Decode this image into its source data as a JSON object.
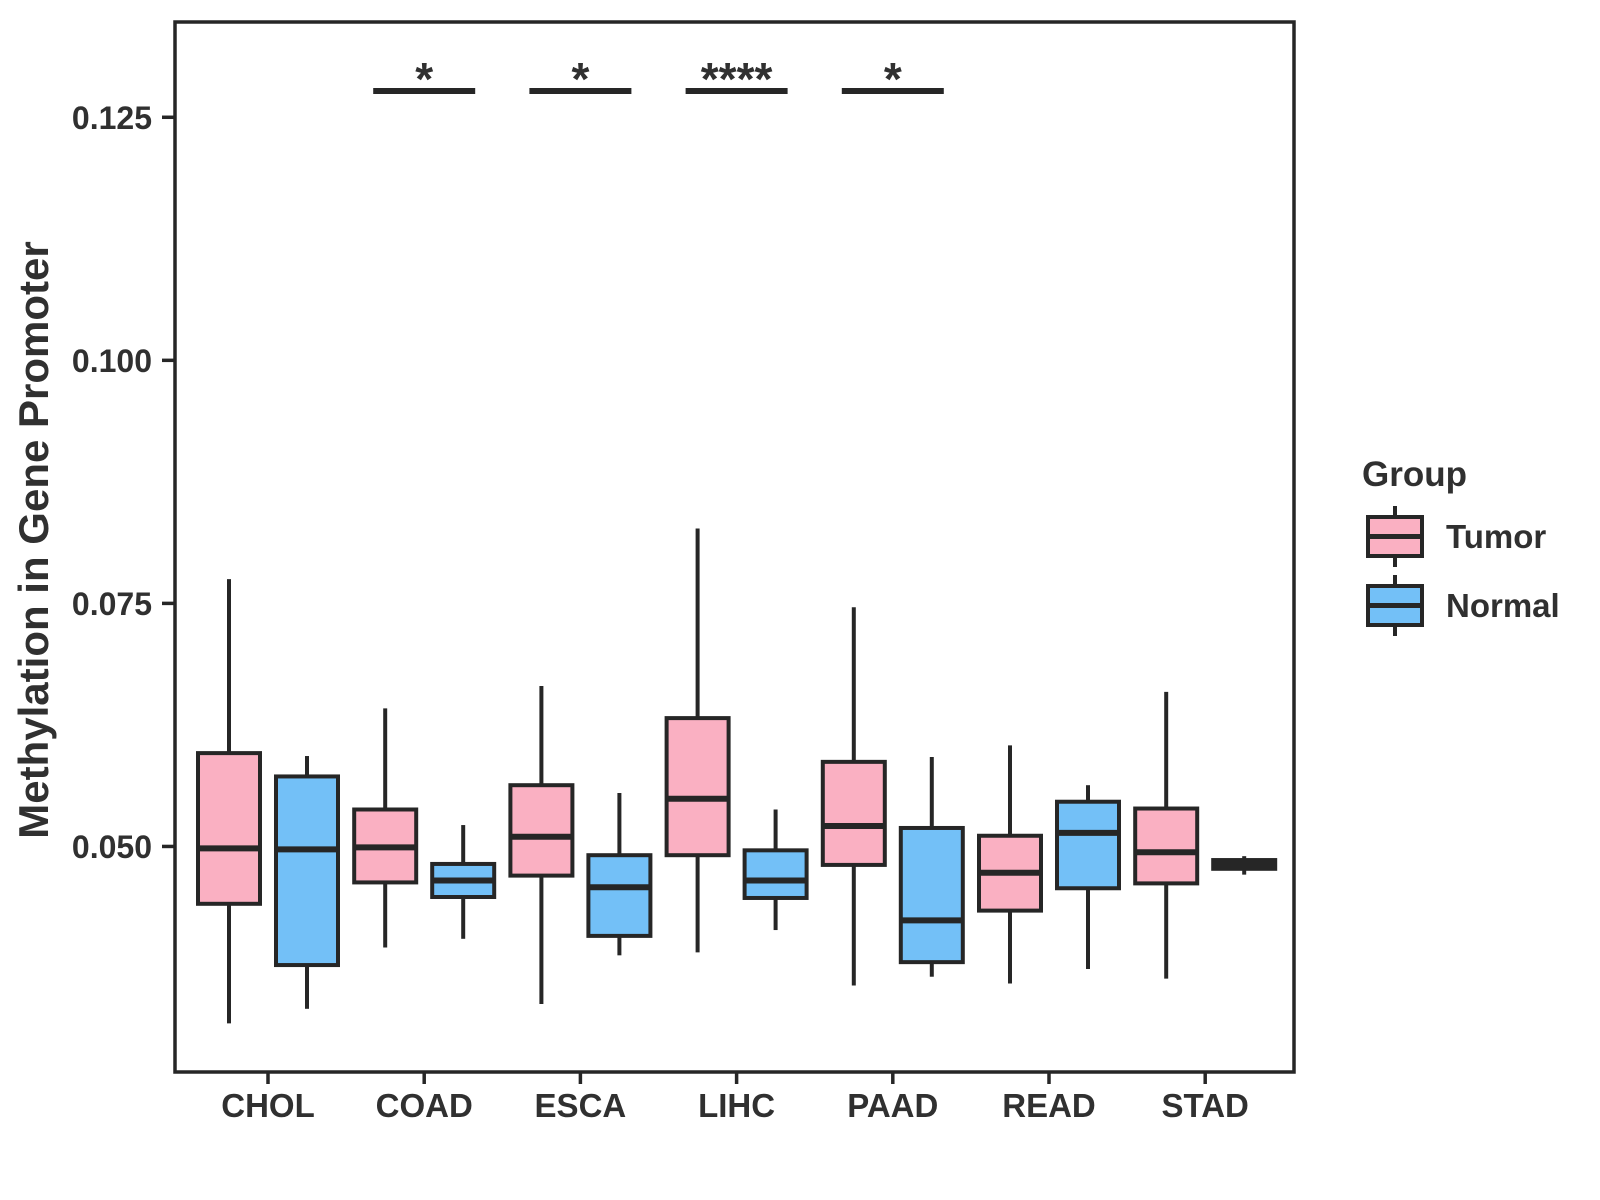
{
  "figure": {
    "background": "#FFFFFF",
    "text_color": "#303030",
    "line_color": "#262626"
  },
  "chart_data": {
    "type": "boxplot",
    "title": "",
    "xlabel": "",
    "ylabel": "Methylation in Gene Promoter",
    "categories": [
      "CHOL",
      "COAD",
      "ESCA",
      "LIHC",
      "PAAD",
      "READ",
      "STAD"
    ],
    "y_ticks": [
      0.05,
      0.075,
      0.1,
      0.125
    ],
    "y_tick_labels": [
      "0.050",
      "0.075",
      "0.100",
      "0.125"
    ],
    "ylim": [
      0.0268,
      0.1348
    ],
    "grid": false,
    "legend": {
      "title": "Group",
      "position": "right",
      "entries": [
        {
          "label": "Tumor",
          "color": "#FAB0C2"
        },
        {
          "label": "Normal",
          "color": "#73C0F7"
        }
      ]
    },
    "series": [
      {
        "name": "Tumor",
        "color": "#FAB0C2",
        "boxes": [
          {
            "category": "CHOL",
            "min": 0.0318,
            "q1": 0.0441,
            "median": 0.0498,
            "q3": 0.0596,
            "max": 0.0775
          },
          {
            "category": "COAD",
            "min": 0.0396,
            "q1": 0.0463,
            "median": 0.0499,
            "q3": 0.0538,
            "max": 0.0642
          },
          {
            "category": "ESCA",
            "min": 0.0338,
            "q1": 0.047,
            "median": 0.051,
            "q3": 0.0563,
            "max": 0.0665
          },
          {
            "category": "LIHC",
            "min": 0.0391,
            "q1": 0.0491,
            "median": 0.0549,
            "q3": 0.0632,
            "max": 0.0827
          },
          {
            "category": "PAAD",
            "min": 0.0357,
            "q1": 0.0481,
            "median": 0.0521,
            "q3": 0.0587,
            "max": 0.0746
          },
          {
            "category": "READ",
            "min": 0.0359,
            "q1": 0.0434,
            "median": 0.0473,
            "q3": 0.0511,
            "max": 0.0604
          },
          {
            "category": "STAD",
            "min": 0.0364,
            "q1": 0.0462,
            "median": 0.0494,
            "q3": 0.0539,
            "max": 0.0659
          }
        ]
      },
      {
        "name": "Normal",
        "color": "#73C0F7",
        "boxes": [
          {
            "category": "CHOL",
            "min": 0.0333,
            "q1": 0.0378,
            "median": 0.0497,
            "q3": 0.0572,
            "max": 0.0593
          },
          {
            "category": "COAD",
            "min": 0.0405,
            "q1": 0.0448,
            "median": 0.0465,
            "q3": 0.0482,
            "max": 0.0522
          },
          {
            "category": "ESCA",
            "min": 0.0388,
            "q1": 0.0408,
            "median": 0.0458,
            "q3": 0.0491,
            "max": 0.0555
          },
          {
            "category": "LIHC",
            "min": 0.0414,
            "q1": 0.0447,
            "median": 0.0465,
            "q3": 0.0496,
            "max": 0.0538
          },
          {
            "category": "PAAD",
            "min": 0.0366,
            "q1": 0.0381,
            "median": 0.0424,
            "q3": 0.0519,
            "max": 0.0592
          },
          {
            "category": "READ",
            "min": 0.0374,
            "q1": 0.0457,
            "median": 0.0514,
            "q3": 0.0546,
            "max": 0.0563
          },
          {
            "category": "STAD",
            "min": 0.0471,
            "q1": 0.0477,
            "median": 0.0481,
            "q3": 0.0486,
            "max": 0.049
          }
        ]
      }
    ],
    "significance": [
      {
        "category": "COAD",
        "label": "*"
      },
      {
        "category": "ESCA",
        "label": "*"
      },
      {
        "category": "LIHC",
        "label": "****"
      },
      {
        "category": "PAAD",
        "label": "*"
      }
    ],
    "significance_line_y": 0.1277
  }
}
